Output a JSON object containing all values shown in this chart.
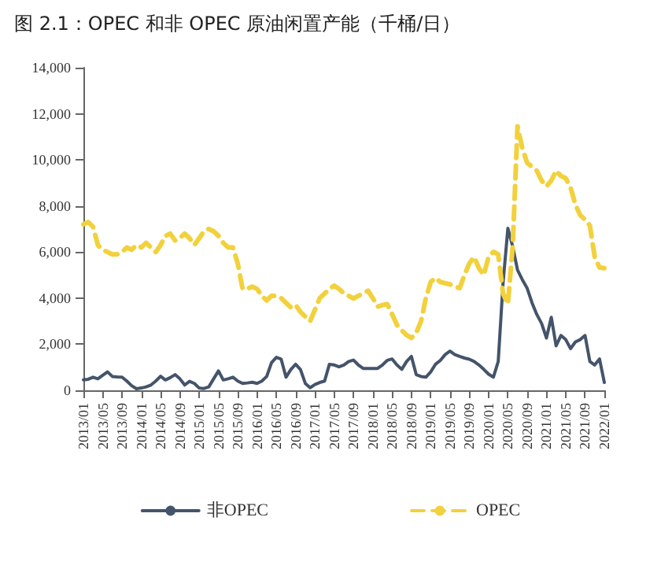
{
  "chart_data": {
    "type": "line",
    "title": "图 2.1：OPEC 和非 OPEC 原油闲置产能（千桶/日）",
    "categories": [
      "2013/01",
      null,
      null,
      null,
      "2013/05",
      null,
      null,
      null,
      "2013/09",
      null,
      null,
      null,
      "2014/01",
      null,
      null,
      null,
      "2014/05",
      null,
      null,
      null,
      "2014/09",
      null,
      null,
      null,
      "2015/01",
      null,
      null,
      null,
      "2015/05",
      null,
      null,
      null,
      "2015/09",
      null,
      null,
      null,
      "2016/01",
      null,
      null,
      null,
      "2016/05",
      null,
      null,
      null,
      "2016/09",
      null,
      null,
      null,
      "2017/01",
      null,
      null,
      null,
      "2017/05",
      null,
      null,
      null,
      "2017/09",
      null,
      null,
      null,
      "2018/01",
      null,
      null,
      null,
      "2018/05",
      null,
      null,
      null,
      "2018/09",
      null,
      null,
      null,
      "2019/01",
      null,
      null,
      null,
      "2019/05",
      null,
      null,
      null,
      "2019/09",
      null,
      null,
      null,
      "2020/01",
      null,
      null,
      null,
      "2020/05",
      null,
      null,
      null,
      "2020/09",
      null,
      null,
      null,
      "2021/01",
      null,
      null,
      null,
      "2021/05",
      null,
      null,
      null,
      "2021/09",
      null,
      null,
      null,
      "2022/01"
    ],
    "series": [
      {
        "name": "非OPEC",
        "color": "#44546a",
        "line_style": "solid",
        "values": [
          450,
          480,
          570,
          500,
          650,
          800,
          600,
          580,
          570,
          400,
          200,
          70,
          100,
          150,
          230,
          400,
          610,
          450,
          550,
          680,
          500,
          230,
          390,
          300,
          100,
          80,
          150,
          500,
          840,
          450,
          500,
          570,
          400,
          300,
          320,
          350,
          300,
          400,
          600,
          1200,
          1430,
          1350,
          570,
          900,
          1130,
          900,
          300,
          110,
          250,
          340,
          400,
          1130,
          1100,
          1020,
          1100,
          1250,
          1310,
          1100,
          950,
          950,
          950,
          950,
          1100,
          1300,
          1360,
          1100,
          910,
          1250,
          1470,
          680,
          600,
          570,
          800,
          1130,
          1300,
          1550,
          1700,
          1550,
          1470,
          1400,
          1350,
          1250,
          1100,
          910,
          700,
          570,
          1250,
          4650,
          7030,
          6240,
          5220,
          4800,
          4430,
          3800,
          3290,
          2900,
          2270,
          3170,
          1930,
          2380,
          2200,
          1810,
          2100,
          2200,
          2380,
          1250,
          1100,
          1360,
          340
        ]
      },
      {
        "name": "OPEC",
        "color": "#f2d13c",
        "line_style": "dashed",
        "values": [
          7200,
          7300,
          7100,
          6300,
          6100,
          6000,
          5900,
          5900,
          6000,
          6200,
          6100,
          6300,
          6200,
          6400,
          6200,
          6000,
          6300,
          6700,
          6800,
          6500,
          6600,
          6800,
          6600,
          6300,
          6600,
          6900,
          7000,
          6900,
          6700,
          6400,
          6200,
          6200,
          5500,
          4400,
          4400,
          4500,
          4400,
          4100,
          3900,
          4100,
          4100,
          4000,
          3800,
          3600,
          3700,
          3400,
          3200,
          3000,
          3500,
          4000,
          4200,
          4400,
          4540,
          4400,
          4200,
          4100,
          3980,
          4100,
          4200,
          4320,
          4000,
          3630,
          3700,
          3740,
          3300,
          2840,
          2600,
          2400,
          2270,
          2500,
          3000,
          4000,
          4700,
          4880,
          4700,
          4650,
          4600,
          4500,
          4430,
          5000,
          5500,
          5790,
          5300,
          5000,
          5800,
          6010,
          5900,
          4200,
          3740,
          6240,
          11460,
          10500,
          9870,
          9700,
          9530,
          9100,
          8850,
          9100,
          9530,
          9300,
          9200,
          8800,
          8060,
          7600,
          7400,
          7150,
          5790,
          5330,
          5300
        ]
      }
    ],
    "ylim": [
      0,
      14000
    ],
    "yticks": [
      0,
      {
        "value": 2000,
        "label": "2,000"
      },
      {
        "value": 4000,
        "label": "4,000"
      },
      {
        "value": 6000,
        "label": "6,000"
      },
      {
        "value": 8000,
        "label": "8,000"
      },
      {
        "value": 10000,
        "label": "10,000"
      },
      {
        "value": 12000,
        "label": "12,000"
      },
      {
        "value": 14000,
        "label": "14,000"
      }
    ],
    "grid": false,
    "legend": "bottom",
    "marker": "none"
  }
}
